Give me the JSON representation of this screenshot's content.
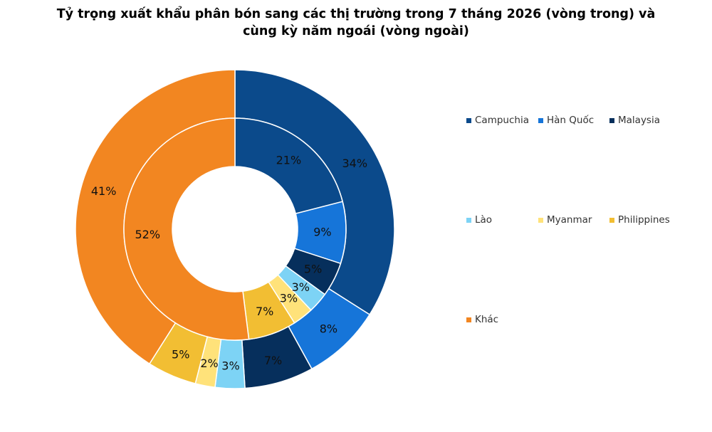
{
  "chart_data": {
    "type": "pie",
    "subtype": "doughnut",
    "title_line1": "Tỷ trọng xuất khẩu phân bón sang các thị trường trong 7 tháng 2026 (vòng trong) và",
    "title_line2": "cùng kỳ năm ngoái (vòng ngoài)",
    "categories": [
      "Campuchia",
      "Hàn Quốc",
      "Malaysia",
      "Lào",
      "Myanmar",
      "Philippines",
      "Khác"
    ],
    "colors": [
      "#0B4A8B",
      "#1675D9",
      "#062F5C",
      "#7DD3F5",
      "#FFE27A",
      "#F2BE33",
      "#F28621"
    ],
    "inner": {
      "values": [
        21,
        9,
        5,
        3,
        3,
        7,
        52
      ],
      "labels": [
        "21%",
        "9%",
        "5%",
        "3%",
        "3%",
        "7%",
        "52%"
      ]
    },
    "outer": {
      "values": [
        34,
        8,
        7,
        3,
        2,
        5,
        41
      ],
      "labels": [
        "34%",
        "8%",
        "7%",
        "3%",
        "2%",
        "5%",
        "41%"
      ]
    },
    "legend_position": "right"
  }
}
